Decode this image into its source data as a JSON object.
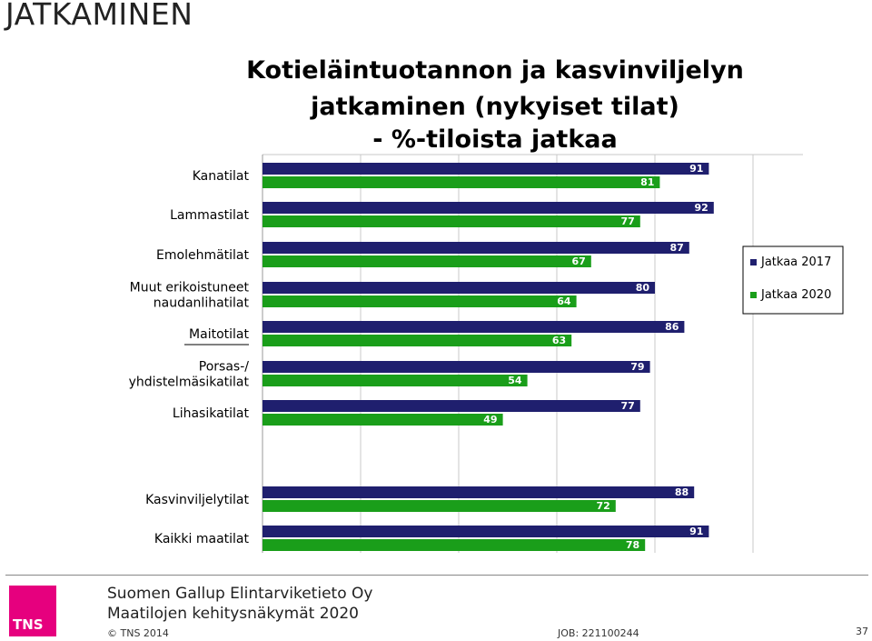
{
  "slide": {
    "title": "JATKAMINEN"
  },
  "chart_data": {
    "type": "bar",
    "orientation": "horizontal",
    "title_lines": [
      "Kotieläintuotannon ja kasvinviljelyn",
      "jatkaminen (nykyiset tilat)",
      "- %-tiloista jatkaa"
    ],
    "categories": [
      "Kanatilat",
      "Lammastilat",
      "Emolehmätilat",
      "Muut erikoistuneet\nnaudanlihatilat",
      "Maitotilat",
      "Porsas-/\nyhdistelmäsikatilat",
      "Lihasikatilat",
      "Kasvinviljelytilat",
      "Kaikki maatilat"
    ],
    "series": [
      {
        "name": "Jatkaa 2017",
        "color": "#1f1f6e",
        "values": [
          91,
          92,
          87,
          80,
          86,
          79,
          77,
          88,
          91
        ]
      },
      {
        "name": "Jatkaa 2020",
        "color": "#1a9e1a",
        "values": [
          81,
          77,
          67,
          64,
          63,
          54,
          49,
          72,
          78
        ]
      }
    ],
    "xlim": [
      0,
      100
    ],
    "grid": true,
    "legend": "right",
    "data_labels": true
  },
  "footer": {
    "company": "Suomen Gallup Elintarviketieto Oy",
    "report": "Maatilojen kehitysnäkymät 2020",
    "copyright": "© TNS 2014",
    "job": "JOB: 221100244",
    "page": "37",
    "logo_text": "TNS"
  }
}
